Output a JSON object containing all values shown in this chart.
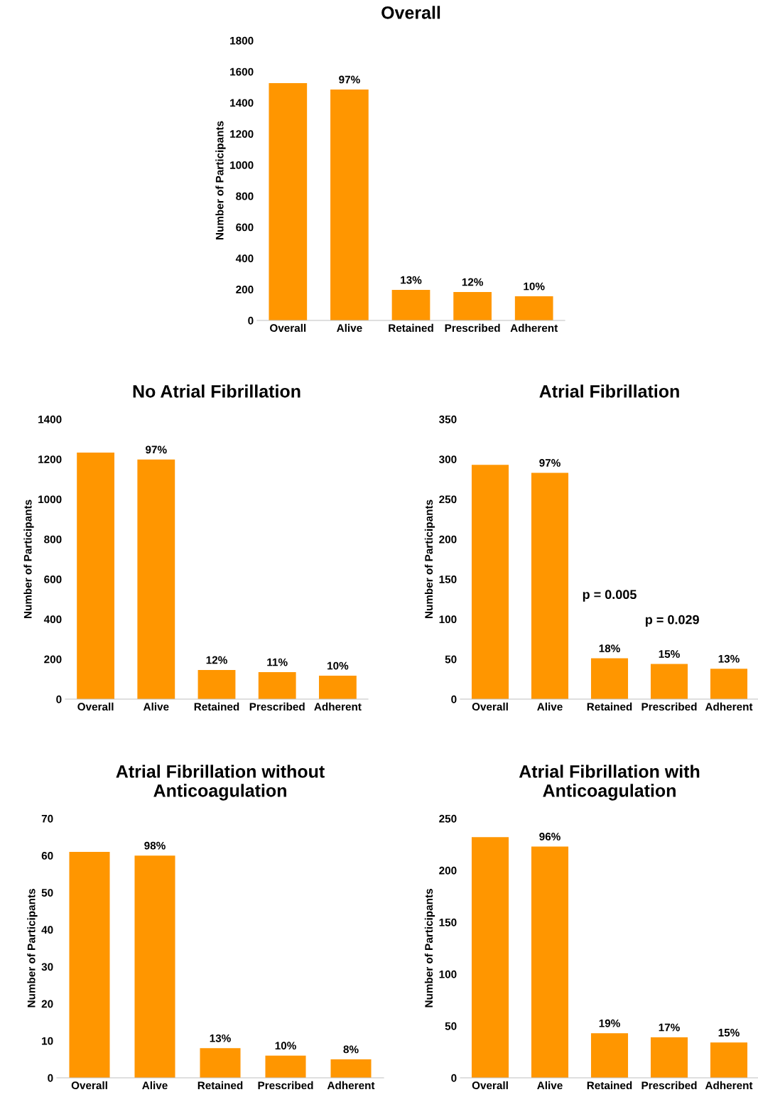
{
  "chart_data": [
    {
      "type": "bar",
      "title": "Overall",
      "ylabel": "Number of Participants",
      "categories": [
        "Overall",
        "Alive",
        "Retained",
        "Prescribed",
        "Adherent"
      ],
      "values": [
        1526,
        1485,
        196,
        183,
        155
      ],
      "color": "#ff9600",
      "ylim": [
        0,
        1800
      ],
      "yticks": [
        0,
        200,
        400,
        600,
        800,
        1000,
        1200,
        1400,
        1600,
        1800
      ],
      "grid": false,
      "legend": false,
      "annotations": [
        {
          "text": "97%",
          "x": "Alive",
          "y": 1485
        },
        {
          "text": "13%",
          "x": "Retained",
          "y": 196
        },
        {
          "text": "12%",
          "x": "Prescribed",
          "y": 183
        },
        {
          "text": "10%",
          "x": "Adherent",
          "y": 155
        }
      ]
    },
    {
      "type": "bar",
      "title": "No Atrial Fibrillation",
      "ylabel": "Number of Participants",
      "categories": [
        "Overall",
        "Alive",
        "Retained",
        "Prescribed",
        "Adherent"
      ],
      "values": [
        1233,
        1198,
        146,
        135,
        117
      ],
      "color": "#ff9600",
      "ylim": [
        0,
        1400
      ],
      "yticks": [
        0,
        200,
        400,
        600,
        800,
        1000,
        1200,
        1400
      ],
      "grid": false,
      "legend": false,
      "annotations": [
        {
          "text": "97%",
          "x": "Alive",
          "y": 1198
        },
        {
          "text": "12%",
          "x": "Retained",
          "y": 146
        },
        {
          "text": "11%",
          "x": "Prescribed",
          "y": 135
        },
        {
          "text": "10%",
          "x": "Adherent",
          "y": 117
        }
      ]
    },
    {
      "type": "bar",
      "title": "Atrial Fibrillation",
      "ylabel": "Number of Participants",
      "categories": [
        "Overall",
        "Alive",
        "Retained",
        "Prescribed",
        "Adherent"
      ],
      "values": [
        293,
        283,
        51,
        44,
        38
      ],
      "color": "#ff9600",
      "ylim": [
        0,
        350
      ],
      "yticks": [
        0,
        50,
        100,
        150,
        200,
        250,
        300,
        350
      ],
      "grid": false,
      "legend": false,
      "annotations": [
        {
          "text": "97%",
          "x": "Alive",
          "y": 283
        },
        {
          "text": "18%",
          "x": "Retained",
          "y": 51
        },
        {
          "text": "15%",
          "x": "Prescribed",
          "y": 44
        },
        {
          "text": "13%",
          "x": "Adherent",
          "y": 38
        },
        "p = 0.005",
        "p = 0.029"
      ]
    },
    {
      "type": "bar",
      "title": "Atrial Fibrillation without\nAnticoagulation",
      "ylabel": "Number of Participants",
      "categories": [
        "Overall",
        "Alive",
        "Retained",
        "Prescribed",
        "Adherent"
      ],
      "values": [
        61,
        60,
        8,
        6,
        5
      ],
      "color": "#ff9600",
      "ylim": [
        0,
        70
      ],
      "yticks": [
        0,
        10,
        20,
        30,
        40,
        50,
        60,
        70
      ],
      "grid": false,
      "legend": false,
      "annotations": [
        {
          "text": "98%",
          "x": "Alive",
          "y": 60
        },
        {
          "text": "13%",
          "x": "Retained",
          "y": 8
        },
        {
          "text": "10%",
          "x": "Prescribed",
          "y": 6
        },
        {
          "text": "8%",
          "x": "Adherent",
          "y": 5
        }
      ]
    },
    {
      "type": "bar",
      "title": "Atrial Fibrillation with\nAnticoagulation",
      "ylabel": "Number of Participants",
      "categories": [
        "Overall",
        "Alive",
        "Retained",
        "Prescribed",
        "Adherent"
      ],
      "values": [
        232,
        223,
        43,
        39,
        34
      ],
      "color": "#ff9600",
      "ylim": [
        0,
        250
      ],
      "yticks": [
        0,
        50,
        100,
        150,
        200,
        250
      ],
      "grid": false,
      "legend": false,
      "annotations": [
        {
          "text": "96%",
          "x": "Alive",
          "y": 223
        },
        {
          "text": "19%",
          "x": "Retained",
          "y": 43
        },
        {
          "text": "17%",
          "x": "Prescribed",
          "y": 39
        },
        {
          "text": "15%",
          "x": "Adherent",
          "y": 34
        }
      ]
    }
  ]
}
